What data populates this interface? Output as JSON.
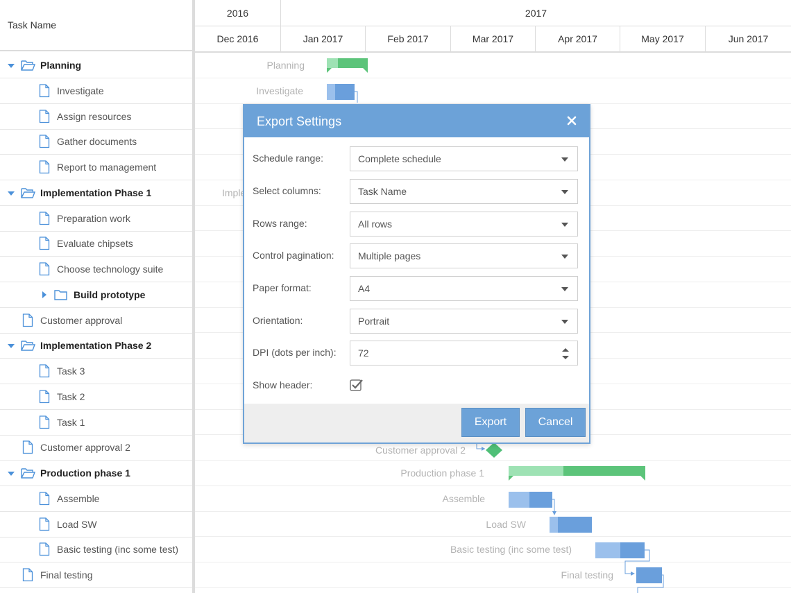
{
  "grid": {
    "header": "Task Name",
    "rows": [
      {
        "label": "Planning",
        "type": "parent",
        "state": "expanded"
      },
      {
        "label": "Investigate",
        "type": "child"
      },
      {
        "label": "Assign resources",
        "type": "child"
      },
      {
        "label": "Gather documents",
        "type": "child"
      },
      {
        "label": "Report to management",
        "type": "child"
      },
      {
        "label": "Implementation Phase 1",
        "type": "parent",
        "state": "expanded"
      },
      {
        "label": "Preparation work",
        "type": "child"
      },
      {
        "label": "Evaluate chipsets",
        "type": "child"
      },
      {
        "label": "Choose technology suite",
        "type": "child"
      },
      {
        "label": "Build prototype",
        "type": "parent",
        "state": "collapsed"
      },
      {
        "label": "Customer approval",
        "type": "child"
      },
      {
        "label": "Implementation Phase 2",
        "type": "parent",
        "state": "expanded"
      },
      {
        "label": "Task 3",
        "type": "child"
      },
      {
        "label": "Task 2",
        "type": "child"
      },
      {
        "label": "Task 1",
        "type": "child"
      },
      {
        "label": "Customer approval 2",
        "type": "child"
      },
      {
        "label": "Production phase 1",
        "type": "parent",
        "state": "expanded"
      },
      {
        "label": "Assemble",
        "type": "child"
      },
      {
        "label": "Load SW",
        "type": "child"
      },
      {
        "label": "Basic testing (inc some test)",
        "type": "child"
      },
      {
        "label": "Final testing",
        "type": "child"
      }
    ]
  },
  "timeline": {
    "years": [
      "2016",
      "2017"
    ],
    "months": [
      "Dec 2016",
      "Jan 2017",
      "Feb 2017",
      "Mar 2017",
      "Apr 2017",
      "May 2017",
      "Jun 2017"
    ],
    "bar_labels": {
      "planning": "Planning",
      "investigate": "Investigate",
      "impl1_partial": "Imple",
      "customer_approval_2": "Customer approval 2",
      "production_phase_1": "Production phase 1",
      "assemble": "Assemble",
      "load_sw": "Load SW",
      "basic_testing": "Basic testing (inc some test)",
      "final_testing": "Final testing"
    }
  },
  "colors": {
    "accent": "#6ca2d8",
    "summary_bar": "#5cc47a",
    "summary_bar_light": "#9ee2b4",
    "task_bar": "#6a9fdc",
    "task_bar_light": "#9bc0ec",
    "milestone": "#4fbf77"
  },
  "export_dialog": {
    "title": "Export Settings",
    "fields": [
      {
        "label": "Schedule range:",
        "value": "Complete schedule"
      },
      {
        "label": "Select columns:",
        "value": "Task Name"
      },
      {
        "label": "Rows range:",
        "value": "All rows"
      },
      {
        "label": "Control pagination:",
        "value": "Multiple pages"
      },
      {
        "label": "Paper format:",
        "value": "A4"
      },
      {
        "label": "Orientation:",
        "value": "Portrait"
      }
    ],
    "dpi": {
      "label": "DPI (dots per inch):",
      "value": "72"
    },
    "show_header": {
      "label": "Show header:",
      "checked": true
    },
    "export_label": "Export",
    "cancel_label": "Cancel"
  }
}
